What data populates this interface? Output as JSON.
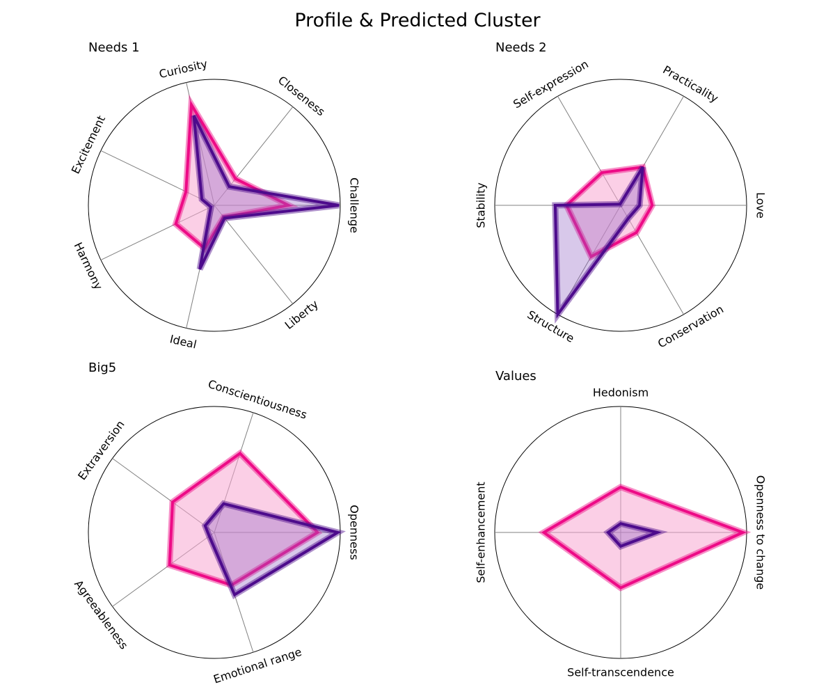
{
  "figure": {
    "title": "Profile & Predicted Cluster"
  },
  "colors": {
    "profile": "#ed0a86",
    "profile_fill": "#f7a8d2",
    "cluster": "#4d0b8c",
    "cluster_fill": "#8e62c4",
    "spoke": "#808080",
    "circle": "#000000"
  },
  "chart_data": [
    {
      "type": "radar",
      "title": "Needs 1",
      "categories": [
        "Challenge",
        "Closeness",
        "Curiosity",
        "Excitement",
        "Harmony",
        "Ideal",
        "Liberty"
      ],
      "rmax": 1.0,
      "series": [
        {
          "values": [
            0.59,
            0.27,
            0.82,
            0.25,
            0.34,
            0.35,
            0.12
          ]
        },
        {
          "values": [
            0.99,
            0.19,
            0.73,
            0.11,
            0.03,
            0.52,
            0.13
          ]
        }
      ]
    },
    {
      "type": "radar",
      "title": "Needs 2",
      "categories": [
        "Love",
        "Practicality",
        "Self-expression",
        "Stability",
        "Structure",
        "Conservation"
      ],
      "rmax": 1.0,
      "series": [
        {
          "values": [
            0.25,
            0.35,
            0.3,
            0.43,
            0.47,
            0.25
          ]
        },
        {
          "values": [
            0.15,
            0.35,
            0.01,
            0.52,
            1.0,
            0.12
          ]
        }
      ]
    },
    {
      "type": "radar",
      "title": "Big5",
      "categories": [
        "Openness",
        "Conscientiousness",
        "Extraversion",
        "Agreeableness",
        "Emotional range"
      ],
      "rmax": 1.0,
      "series": [
        {
          "values": [
            0.82,
            0.66,
            0.41,
            0.44,
            0.44
          ]
        },
        {
          "values": [
            0.98,
            0.24,
            0.09,
            0.05,
            0.52
          ]
        }
      ]
    },
    {
      "type": "radar",
      "title": "Values",
      "categories": [
        "Openness to change",
        "Hedonism",
        "Self-enhancement",
        "Self-transcendence"
      ],
      "rmax": 1.0,
      "series": [
        {
          "values": [
            0.97,
            0.36,
            0.61,
            0.44
          ]
        },
        {
          "values": [
            0.29,
            0.07,
            0.1,
            0.11
          ]
        }
      ]
    }
  ]
}
